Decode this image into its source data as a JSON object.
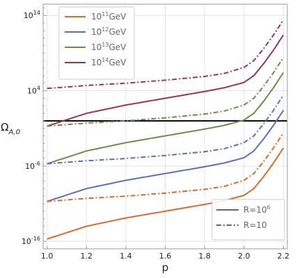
{
  "chart_data": {
    "type": "line",
    "xlabel": "p",
    "ylabel_main": "Ω",
    "ylabel_sub": "A,0",
    "xlim": [
      0.98,
      2.22
    ],
    "ylim": [
      -17,
      15.5
    ],
    "yscale": "log10",
    "x_ticks": [
      1.0,
      1.2,
      1.4,
      1.6,
      1.8,
      2.0,
      2.2
    ],
    "x_tick_labels": [
      "1.0",
      "1.2",
      "1.4",
      "1.6",
      "1.8",
      "2.0",
      "2.2"
    ],
    "y_ticks": [
      {
        "exp": 14,
        "base": "10",
        "sup": "14"
      },
      {
        "exp": 4,
        "base": "10",
        "sup": "4"
      },
      {
        "exp": -6,
        "base": "10",
        "sup": "-6"
      },
      {
        "exp": -16,
        "base": "10",
        "sup": "-16"
      }
    ],
    "grid": true,
    "horizontal_line": {
      "y_exp": 0.0,
      "color": "#000000"
    },
    "series": [
      {
        "name": "10^11 GeV",
        "label_base": "10",
        "label_sup": "11",
        "label_unit": "GeV",
        "color": "#E0692A",
        "style": "solid",
        "x": [
          1.0,
          1.2,
          1.4,
          1.6,
          1.8,
          1.9,
          2.0,
          2.05,
          2.1,
          2.15,
          2.2
        ],
        "y_exp": [
          -15.7,
          -14.0,
          -12.9,
          -12.0,
          -11.1,
          -10.6,
          -9.9,
          -9.0,
          -7.4,
          -5.6,
          -3.6
        ]
      },
      {
        "name": "10^12 GeV",
        "label_base": "10",
        "label_sup": "12",
        "label_unit": "GeV",
        "color": "#5A6FBF",
        "style": "solid",
        "x": [
          1.0,
          1.2,
          1.4,
          1.6,
          1.8,
          1.9,
          2.0,
          2.05,
          2.1,
          2.15,
          2.2
        ],
        "y_exp": [
          -10.7,
          -9.0,
          -7.9,
          -7.0,
          -6.1,
          -5.6,
          -4.9,
          -4.0,
          -2.4,
          -0.6,
          1.4
        ]
      },
      {
        "name": "10^13 GeV",
        "label_base": "10",
        "label_sup": "13",
        "label_unit": "GeV",
        "color": "#6E8C45",
        "style": "solid",
        "x": [
          1.0,
          1.2,
          1.4,
          1.6,
          1.8,
          1.9,
          2.0,
          2.05,
          2.1,
          2.15,
          2.2
        ],
        "y_exp": [
          -5.7,
          -4.0,
          -2.9,
          -2.0,
          -1.1,
          -0.6,
          0.1,
          1.0,
          2.6,
          4.4,
          6.4
        ]
      },
      {
        "name": "10^14 GeV",
        "label_base": "10",
        "label_sup": "14",
        "label_unit": "GeV",
        "color": "#9B3550",
        "style": "solid",
        "x": [
          1.0,
          1.2,
          1.4,
          1.6,
          1.8,
          1.9,
          2.0,
          2.05,
          2.1,
          2.15,
          2.2
        ],
        "y_exp": [
          -0.7,
          1.0,
          2.1,
          3.0,
          3.9,
          4.4,
          5.1,
          6.0,
          7.6,
          9.4,
          11.4
        ]
      },
      {
        "name": "10^11 GeV, R=10",
        "color": "#E0692A",
        "style": "dashdot",
        "x": [
          1.0,
          1.2,
          1.4,
          1.6,
          1.8,
          1.9,
          2.0,
          2.05,
          2.1,
          2.15,
          2.2
        ],
        "y_exp": [
          -10.7,
          -10.3,
          -10.0,
          -9.6,
          -9.1,
          -8.7,
          -7.9,
          -7.0,
          -5.4,
          -3.6,
          -1.6
        ]
      },
      {
        "name": "10^12 GeV, R=10",
        "color": "#5A6FBF",
        "style": "dashdot",
        "x": [
          1.0,
          1.2,
          1.4,
          1.6,
          1.8,
          1.9,
          2.0,
          2.05,
          2.1,
          2.15,
          2.2
        ],
        "y_exp": [
          -5.7,
          -5.3,
          -5.0,
          -4.6,
          -4.1,
          -3.7,
          -2.9,
          -2.0,
          -0.4,
          1.4,
          3.4
        ]
      },
      {
        "name": "10^13 GeV, R=10",
        "color": "#6E8C45",
        "style": "dashdot",
        "x": [
          1.0,
          1.2,
          1.4,
          1.6,
          1.8,
          1.9,
          2.0,
          2.05,
          2.1,
          2.15,
          2.2
        ],
        "y_exp": [
          -0.7,
          -0.3,
          0.0,
          0.4,
          0.9,
          1.3,
          2.1,
          3.0,
          4.6,
          6.4,
          8.4
        ]
      },
      {
        "name": "10^14 GeV, R=10",
        "color": "#9B3550",
        "style": "dashdot",
        "x": [
          1.0,
          1.2,
          1.4,
          1.6,
          1.8,
          1.9,
          2.0,
          2.05,
          2.1,
          2.15,
          2.2
        ],
        "y_exp": [
          4.3,
          4.7,
          5.0,
          5.4,
          5.9,
          6.3,
          7.1,
          8.0,
          9.6,
          11.4,
          13.4
        ]
      }
    ],
    "legend_colors": {
      "entries": [
        {
          "label_base": "10",
          "label_sup": "11",
          "label_unit": "GeV",
          "color": "#E0692A"
        },
        {
          "label_base": "10",
          "label_sup": "12",
          "label_unit": "GeV",
          "color": "#5A6FBF"
        },
        {
          "label_base": "10",
          "label_sup": "13",
          "label_unit": "GeV",
          "color": "#6E8C45"
        },
        {
          "label_base": "10",
          "label_sup": "14",
          "label_unit": "GeV",
          "color": "#9B3550"
        }
      ],
      "placement": "top-left"
    },
    "legend_styles": {
      "entries": [
        {
          "label_main": "R=10",
          "label_sup": "6",
          "style": "solid"
        },
        {
          "label_main": "R=10",
          "label_sup": "",
          "style": "dashdot"
        }
      ],
      "placement": "bottom-right"
    }
  }
}
